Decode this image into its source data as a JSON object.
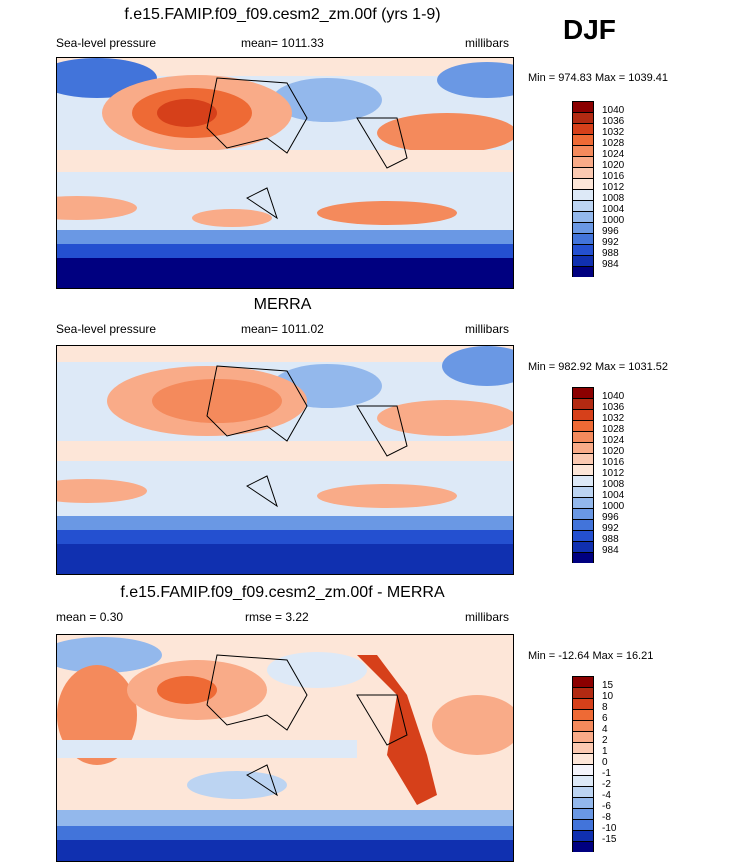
{
  "season": "DJF",
  "panels": [
    {
      "title": "f.e15.FAMIP.f09_f09.cesm2_zm.00f (yrs 1-9)",
      "left": "Sea-level pressure",
      "center": "mean= 1011.33",
      "right": "millibars",
      "minmax": "Min = 974.83 Max = 1039.41",
      "colorbar": {
        "labels": [
          "1040",
          "1036",
          "1032",
          "1028",
          "1024",
          "1020",
          "1016",
          "1012",
          "1008",
          "1004",
          "1000",
          "996",
          "992",
          "988",
          "984"
        ],
        "colors": [
          "#8b0000",
          "#b22a12",
          "#d6401a",
          "#ee6a35",
          "#f48a5c",
          "#f9ab88",
          "#fbc9b1",
          "#fde6d8",
          "#dde9f7",
          "#bcd4f2",
          "#93b8ec",
          "#6a98e4",
          "#4274da",
          "#2450d0",
          "#1030b0",
          "#000080"
        ]
      }
    },
    {
      "title": "MERRA",
      "left": "Sea-level pressure",
      "center": "mean= 1011.02",
      "right": "millibars",
      "minmax": "Min = 982.92 Max = 1031.52",
      "colorbar": {
        "labels": [
          "1040",
          "1036",
          "1032",
          "1028",
          "1024",
          "1020",
          "1016",
          "1012",
          "1008",
          "1004",
          "1000",
          "996",
          "992",
          "988",
          "984"
        ],
        "colors": [
          "#8b0000",
          "#b22a12",
          "#d6401a",
          "#ee6a35",
          "#f48a5c",
          "#f9ab88",
          "#fbc9b1",
          "#fde6d8",
          "#dde9f7",
          "#bcd4f2",
          "#93b8ec",
          "#6a98e4",
          "#4274da",
          "#2450d0",
          "#1030b0",
          "#000080"
        ]
      }
    },
    {
      "title": "f.e15.FAMIP.f09_f09.cesm2_zm.00f - MERRA",
      "left": "mean =   0.30",
      "center": "rmse =   3.22",
      "right": "millibars",
      "minmax": "Min = -12.64 Max =  16.21",
      "colorbar": {
        "labels": [
          "15",
          "10",
          "8",
          "6",
          "4",
          "2",
          "1",
          "0",
          "-1",
          "-2",
          "-4",
          "-6",
          "-8",
          "-10",
          "-15"
        ],
        "colors": [
          "#8b0000",
          "#b22a12",
          "#d6401a",
          "#ee6a35",
          "#f48a5c",
          "#f9ab88",
          "#fbc9b1",
          "#fde6d8",
          "#f4f4fb",
          "#dde9f7",
          "#bcd4f2",
          "#93b8ec",
          "#6a98e4",
          "#4274da",
          "#1030b0",
          "#000080"
        ]
      }
    }
  ]
}
